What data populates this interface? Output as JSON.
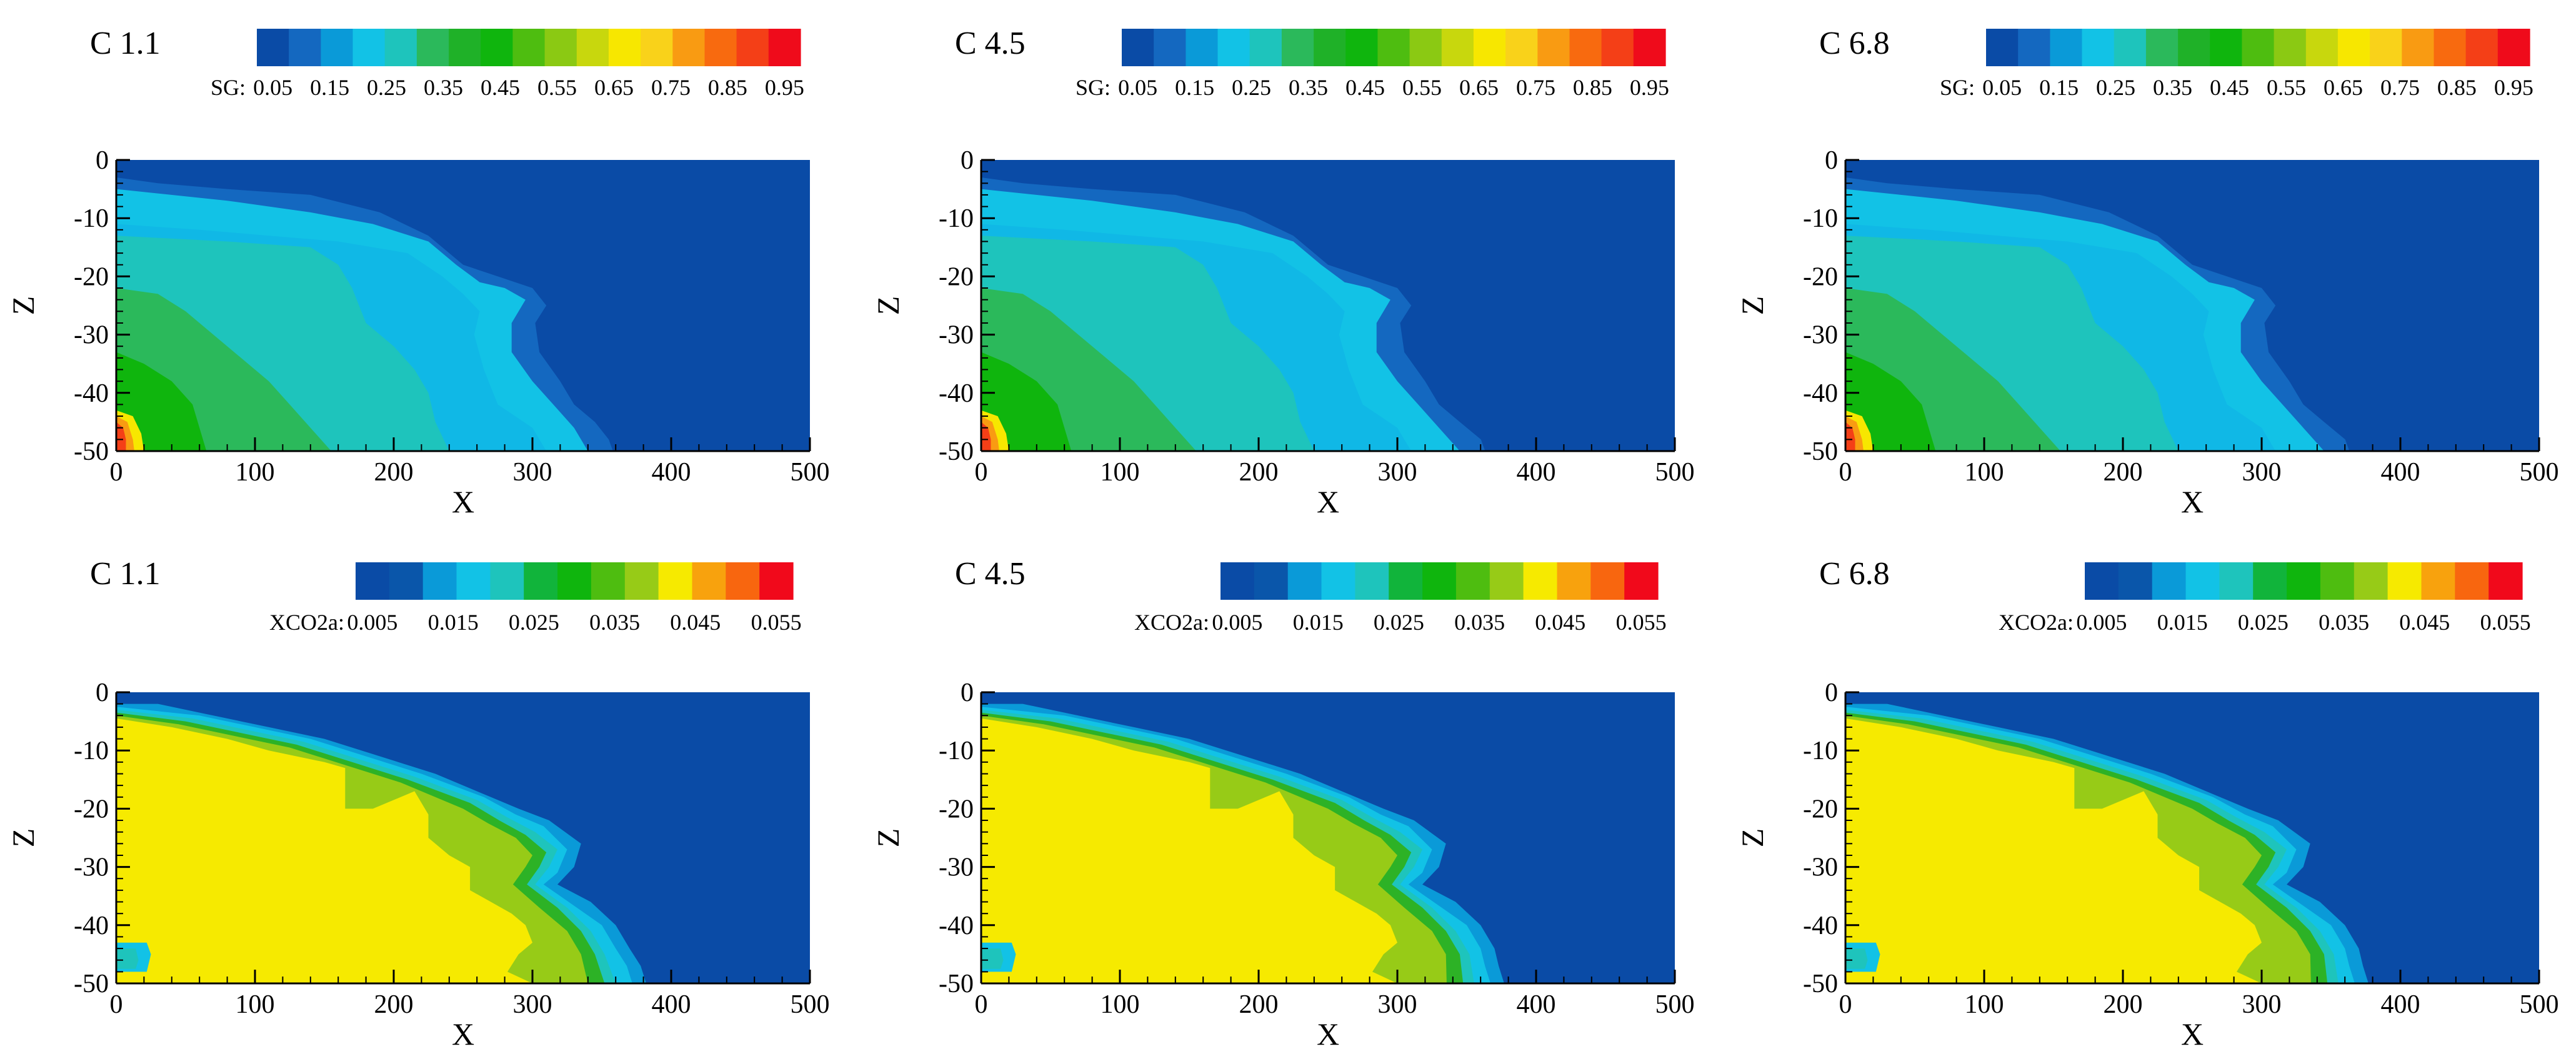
{
  "sg_scale": {
    "variable": "SG",
    "label": "SG:",
    "ticks": [
      "0.05",
      "0.15",
      "0.25",
      "0.35",
      "0.45",
      "0.55",
      "0.65",
      "0.75",
      "0.85",
      "0.95"
    ],
    "colors": [
      "#0a4ba6",
      "#1468c0",
      "#0a9ad8",
      "#12c2e6",
      "#1ec4bc",
      "#2bb95b",
      "#1fb128",
      "#0fb50d",
      "#4ebd10",
      "#8bc913",
      "#c8d70d",
      "#f7e700",
      "#f9d21a",
      "#f99b12",
      "#f86a0f",
      "#f43f17",
      "#ef0b1b"
    ]
  },
  "xco2_scale": {
    "variable": "XCO2a",
    "label": "XCO2a:",
    "ticks": [
      "0.005",
      "0.015",
      "0.025",
      "0.035",
      "0.045",
      "0.055"
    ],
    "colors": [
      "#0a4ba6",
      "#0a56aa",
      "#0a9ad8",
      "#12c2e6",
      "#1ec4bc",
      "#11b43b",
      "#0fb50d",
      "#4ebd10",
      "#97cb17",
      "#f6ea00",
      "#f8a20d",
      "#f8660f",
      "#f1091b"
    ]
  },
  "axes": {
    "x_label": "X",
    "z_label": "Z",
    "x_ticks": [
      "0",
      "100",
      "200",
      "300",
      "400",
      "500"
    ],
    "z_ticks": [
      "0",
      "-10",
      "-20",
      "-30",
      "-40",
      "-50"
    ]
  },
  "chart_data": [
    {
      "type": "heatmap",
      "title": "C 1.1",
      "variable": "SG",
      "xlabel": "X",
      "ylabel": "Z",
      "xlim": [
        0,
        500
      ],
      "ylim": [
        -50,
        0
      ],
      "front_extent_x": 340,
      "colorbar_range": [
        0.05,
        0.95
      ],
      "background_value": 0.05
    },
    {
      "type": "heatmap",
      "title": "C 4.5",
      "variable": "SG",
      "xlabel": "X",
      "ylabel": "Z",
      "xlim": [
        0,
        500
      ],
      "ylim": [
        -50,
        0
      ],
      "front_extent_x": 345,
      "colorbar_range": [
        0.05,
        0.95
      ],
      "background_value": 0.05
    },
    {
      "type": "heatmap",
      "title": "C 6.8",
      "variable": "SG",
      "xlabel": "X",
      "ylabel": "Z",
      "xlim": [
        0,
        500
      ],
      "ylim": [
        -50,
        0
      ],
      "front_extent_x": 345,
      "colorbar_range": [
        0.05,
        0.95
      ],
      "background_value": 0.05
    },
    {
      "type": "heatmap",
      "title": "C 1.1",
      "variable": "XCO2a",
      "xlabel": "X",
      "ylabel": "Z",
      "xlim": [
        0,
        500
      ],
      "ylim": [
        -50,
        0
      ],
      "front_extent_x": 380,
      "colorbar_range": [
        0.005,
        0.055
      ],
      "plume_value": 0.05
    },
    {
      "type": "heatmap",
      "title": "C 4.5",
      "variable": "XCO2a",
      "xlabel": "X",
      "ylabel": "Z",
      "xlim": [
        0,
        500
      ],
      "ylim": [
        -50,
        0
      ],
      "front_extent_x": 375,
      "colorbar_range": [
        0.005,
        0.055
      ],
      "plume_value": 0.05
    },
    {
      "type": "heatmap",
      "title": "C 6.8",
      "variable": "XCO2a",
      "xlabel": "X",
      "ylabel": "Z",
      "xlim": [
        0,
        500
      ],
      "ylim": [
        -50,
        0
      ],
      "front_extent_x": 375,
      "colorbar_range": [
        0.005,
        0.055
      ],
      "plume_value": 0.05
    }
  ]
}
